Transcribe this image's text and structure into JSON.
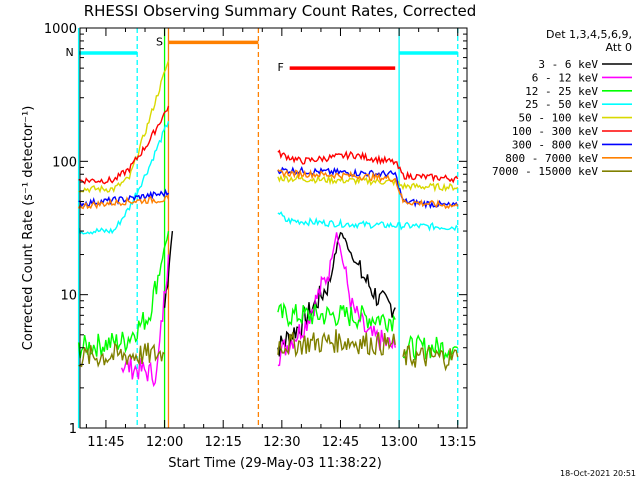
{
  "chart_data": {
    "type": "line",
    "title": "RHESSI Observing Summary Count Rates, Corrected",
    "xlabel": "Start Time (29-May-03 11:38:22)",
    "ylabel": "Corrected Count Rate (s⁻¹ detector⁻¹)",
    "y_scale": "log",
    "ylim": [
      1,
      1000
    ],
    "xlim_min_from_11_38_22": [
      0,
      99
    ],
    "y_ticks": [
      {
        "value": 1,
        "label": "1"
      },
      {
        "value": 10,
        "label": "10"
      },
      {
        "value": 100,
        "label": "100"
      },
      {
        "value": 1000,
        "label": "1000"
      }
    ],
    "x_ticks": [
      {
        "time": "11:45",
        "label": "11:45"
      },
      {
        "time": "12:00",
        "label": "12:00"
      },
      {
        "time": "12:15",
        "label": "12:15"
      },
      {
        "time": "12:30",
        "label": "12:30"
      },
      {
        "time": "12:45",
        "label": "12:45"
      },
      {
        "time": "13:00",
        "label": "13:00"
      },
      {
        "time": "13:15",
        "label": "13:15"
      }
    ],
    "legend": {
      "placement": "outside-right",
      "header": [
        "Det 1,3,4,5,6,9,",
        "Att 0"
      ],
      "entries": [
        {
          "label": "3 - 6 keV",
          "color": "#000000"
        },
        {
          "label": "6 - 12 keV",
          "color": "#ff00ff"
        },
        {
          "label": "12 - 25 keV",
          "color": "#00ff00"
        },
        {
          "label": "25 - 50 keV",
          "color": "#00ffff"
        },
        {
          "label": "50 - 100 keV",
          "color": "#d9d900"
        },
        {
          "label": "100 - 300 keV",
          "color": "#ff0000"
        },
        {
          "label": "300 - 800 keV",
          "color": "#0000ff"
        },
        {
          "label": "800 - 7000 keV",
          "color": "#ff8000"
        },
        {
          "label": "7000 - 15000 keV",
          "color": "#808000"
        }
      ]
    },
    "series": [
      {
        "name": "3 - 6 keV",
        "color": "#000000",
        "segments": [
          {
            "t": [
              "12:00",
              "12:02"
            ],
            "y": [
              8,
              30
            ]
          },
          {
            "t": [
              "12:29",
              "12:35",
              "12:42",
              "12:45",
              "12:50",
              "12:55",
              "12:59"
            ],
            "y": [
              4,
              6,
              12,
              30,
              15,
              9,
              8
            ]
          }
        ]
      },
      {
        "name": "6 - 12 keV",
        "color": "#ff00ff",
        "segments": [
          {
            "t": [
              "11:49",
              "11:58",
              "12:01"
            ],
            "y": [
              3.0,
              2.5,
              20
            ]
          },
          {
            "t": [
              "12:29",
              "12:36",
              "12:42",
              "12:44",
              "12:48",
              "12:52",
              "12:59"
            ],
            "y": [
              3.5,
              6,
              15,
              30,
              8,
              5,
              4
            ]
          }
        ]
      },
      {
        "name": "12 - 25 keV",
        "color": "#00ff00",
        "segments": [
          {
            "t": [
              "11:38",
              "11:50",
              "11:56",
              "12:01"
            ],
            "y": [
              4,
              4.5,
              7,
              30
            ]
          },
          {
            "t": [
              "12:29",
              "12:45",
              "12:59"
            ],
            "y": [
              7,
              7,
              6.5
            ]
          },
          {
            "t": [
              "13:01",
              "13:15"
            ],
            "y": [
              4,
              4
            ]
          }
        ]
      },
      {
        "name": "25 - 50 keV",
        "color": "#00ffff",
        "segments": [
          {
            "t": [
              "11:38",
              "11:47",
              "11:51",
              "11:56",
              "12:01"
            ],
            "y": [
              30,
              30,
              45,
              90,
              200
            ]
          },
          {
            "t": [
              "12:29",
              "12:31",
              "12:45",
              "12:59",
              "13:15"
            ],
            "y": [
              42,
              36,
              34,
              33,
              32
            ]
          }
        ]
      },
      {
        "name": "50 - 100 keV",
        "color": "#d9d900",
        "segments": [
          {
            "t": [
              "11:38",
              "11:47",
              "11:51",
              "11:56",
              "12:01"
            ],
            "y": [
              62,
              62,
              75,
              200,
              570
            ]
          },
          {
            "t": [
              "12:29",
              "12:45",
              "12:59",
              "13:01",
              "13:15"
            ],
            "y": [
              75,
              72,
              70,
              65,
              64
            ]
          }
        ]
      },
      {
        "name": "100 - 300 keV",
        "color": "#ff0000",
        "segments": [
          {
            "t": [
              "11:38",
              "11:47",
              "11:51",
              "11:56",
              "12:01"
            ],
            "y": [
              72,
              72,
              88,
              140,
              260
            ]
          },
          {
            "t": [
              "12:29",
              "12:35",
              "12:48",
              "12:59",
              "13:01",
              "13:15"
            ],
            "y": [
              115,
              100,
              112,
              98,
              78,
              74
            ]
          }
        ]
      },
      {
        "name": "300 - 800 keV",
        "color": "#0000ff",
        "segments": [
          {
            "t": [
              "11:38",
              "11:50",
              "12:01"
            ],
            "y": [
              48,
              52,
              58
            ]
          },
          {
            "t": [
              "12:29",
              "12:48",
              "12:59",
              "13:01",
              "13:15"
            ],
            "y": [
              86,
              82,
              80,
              50,
              46
            ]
          }
        ]
      },
      {
        "name": "800 - 7000 keV",
        "color": "#ff8000",
        "segments": [
          {
            "t": [
              "11:38",
              "11:50",
              "12:01"
            ],
            "y": [
              46,
              50,
              52
            ]
          },
          {
            "t": [
              "12:29",
              "12:48",
              "12:59",
              "13:01",
              "13:15"
            ],
            "y": [
              82,
              78,
              74,
              50,
              46
            ]
          }
        ]
      },
      {
        "name": "7000 - 15000 keV",
        "color": "#808000",
        "segments": [
          {
            "t": [
              "11:38",
              "11:50",
              "12:00"
            ],
            "y": [
              3.4,
              3.5,
              3.6
            ]
          },
          {
            "t": [
              "12:29",
              "12:45",
              "12:59"
            ],
            "y": [
              4.2,
              4.5,
              4.2
            ]
          },
          {
            "t": [
              "13:01",
              "13:15"
            ],
            "y": [
              3.4,
              3.4
            ]
          }
        ]
      }
    ],
    "annotations": [
      {
        "label": "N",
        "color": "#00ffff",
        "kind": "bar",
        "t_start": "11:38",
        "t_end": "11:53",
        "y": 650
      },
      {
        "label": "",
        "color": "#00ffff",
        "kind": "bar",
        "t_start": "13:00",
        "t_end": "13:15",
        "y": 650
      },
      {
        "label": "S",
        "color": "#ff8000",
        "kind": "bar",
        "t_start": "12:01",
        "t_end": "12:24",
        "y": 780
      },
      {
        "label": "F",
        "color": "#ff0000",
        "kind": "bar",
        "t_start": "12:32",
        "t_end": "12:59",
        "y": 500
      }
    ],
    "vertical_lines": [
      {
        "t": "11:38",
        "color": "#00ffff",
        "style": "solid"
      },
      {
        "t": "11:53",
        "color": "#00ffff",
        "style": "dashed"
      },
      {
        "t": "12:00",
        "color": "#00ff00",
        "style": "solid"
      },
      {
        "t": "12:01",
        "color": "#ff8000",
        "style": "solid"
      },
      {
        "t": "12:24",
        "color": "#ff8000",
        "style": "dashed"
      },
      {
        "t": "13:00",
        "color": "#00ffff",
        "style": "solid"
      },
      {
        "t": "13:15",
        "color": "#00ffff",
        "style": "dashed"
      }
    ]
  },
  "footer": {
    "timestamp": "18-Oct-2021 20:51"
  }
}
